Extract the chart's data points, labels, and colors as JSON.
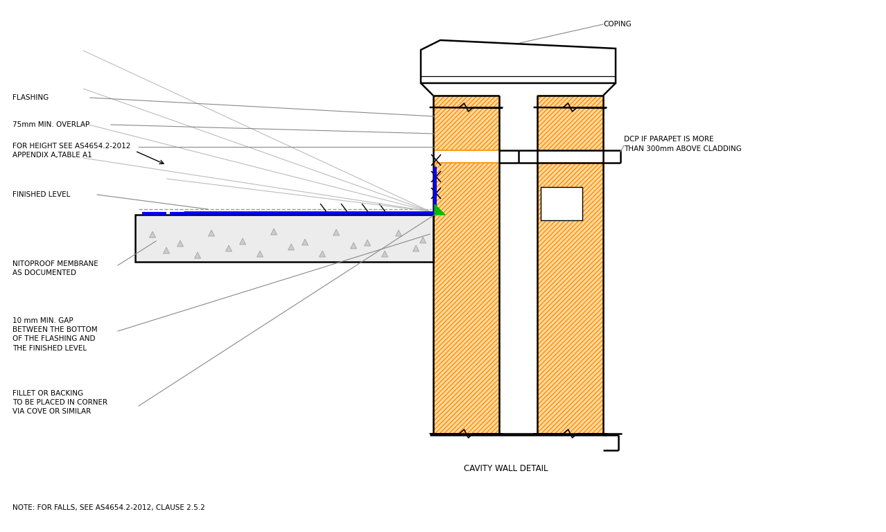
{
  "bg_color": "#ffffff",
  "line_color": "#000000",
  "orange_fill": "#FFD9A0",
  "orange_edge": "#FF8C00",
  "blue_color": "#0000FF",
  "green_color": "#00BB00",
  "concrete_fill": "#ECECEC",
  "gray_line": "#888888",
  "labels": {
    "coping": "COPING",
    "flashing": "FLASHING",
    "overlap": "75mm MIN. OVERLAP",
    "height_ref": "FOR HEIGHT SEE AS4654.2-2012\nAPPENDIX A,TABLE A1",
    "finished_level": "FINISHED LEVEL",
    "membrane": "NITOPROOF MEMBRANE\nAS DOCUMENTED",
    "gap": "10 mm MIN. GAP\nBETWEEN THE BOTTOM\nOF THE FLASHING AND\nTHE FINISHED LEVEL",
    "fillet": "FILLET OR BACKING\nTO BE PLACED IN CORNER\nVIA COVE OR SIMILAR",
    "dcp": "DCP IF PARAPET IS MORE\nTHAN 300mm ABOVE CLADDING",
    "cavity": "CAVITY WALL DETAIL",
    "note": "NOTE: FOR FALLS, SEE AS4654.2-2012, CLAUSE 2.5.2"
  },
  "figsize": [
    12.78,
    7.68
  ],
  "dpi": 100
}
